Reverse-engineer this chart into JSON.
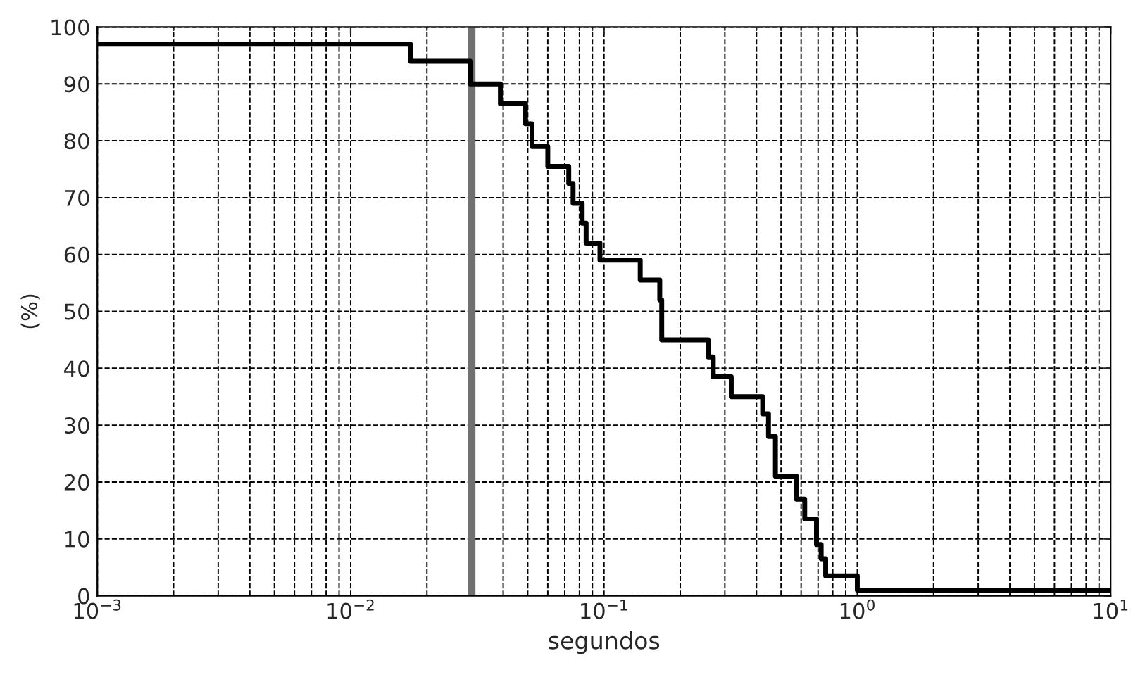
{
  "chart_data": {
    "type": "step",
    "xlabel": "segundos",
    "ylabel": "(%)",
    "log": "x",
    "x": [
      0.001,
      0.0172,
      0.0296,
      0.039,
      0.049,
      0.052,
      0.06,
      0.0726,
      0.0755,
      0.082,
      0.085,
      0.0964,
      0.139,
      0.166,
      0.169,
      0.258,
      0.27,
      0.318,
      0.423,
      0.446,
      0.475,
      0.575,
      0.62,
      0.69,
      0.72,
      0.75,
      1.0,
      10
    ],
    "series": [
      {
        "color": "#000000",
        "values": [
          97,
          94,
          90,
          86.5,
          83,
          79,
          75.5,
          72.5,
          69,
          65.5,
          62,
          59,
          55.5,
          52,
          45,
          42,
          38.5,
          35,
          32,
          28,
          21,
          17,
          13.5,
          9,
          6.5,
          3.5,
          1,
          1
        ]
      }
    ],
    "xlim": [
      0.001,
      10
    ],
    "ylim": [
      0,
      100
    ],
    "xticks": [
      {
        "value": 0.001,
        "label": "10$^{−3}$"
      },
      {
        "value": 0.01,
        "label": "10$^{−2}$"
      },
      {
        "value": 0.1,
        "label": "10$^{−1}$"
      },
      {
        "value": 1,
        "label": "10$^{0}$"
      },
      {
        "value": 10,
        "label": "10$^{1}$"
      }
    ],
    "yticks": [
      0,
      10,
      20,
      30,
      40,
      50,
      60,
      70,
      80,
      90,
      100
    ],
    "grid": true,
    "line_style": "solid",
    "ref_lines": [
      {
        "axis": "x",
        "value": 0.03,
        "color": "#707070",
        "line_style": "solid"
      }
    ]
  }
}
